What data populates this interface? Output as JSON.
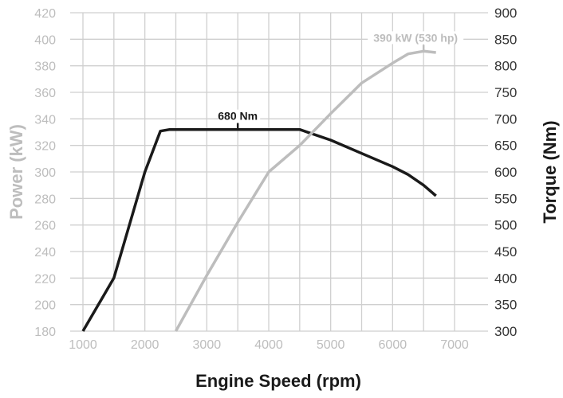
{
  "chart_data": {
    "type": "line",
    "xlabel": "Engine Speed (rpm)",
    "ylabel_left": "Power (kW)",
    "ylabel_right": "Torque (Nm)",
    "xlim": [
      1000,
      7000
    ],
    "ylim_left": [
      180,
      420
    ],
    "ylim_right": [
      300,
      900
    ],
    "x_ticks": [
      "1000",
      "2000",
      "3000",
      "4000",
      "5000",
      "6000",
      "7000"
    ],
    "y_ticks_left": [
      "180",
      "200",
      "220",
      "240",
      "260",
      "280",
      "300",
      "320",
      "340",
      "360",
      "380",
      "400",
      "420"
    ],
    "y_ticks_right": [
      "300",
      "350",
      "400",
      "450",
      "500",
      "550",
      "600",
      "650",
      "700",
      "750",
      "800",
      "850",
      "900"
    ],
    "grid": true,
    "colors": {
      "power": "#bdbdbd",
      "torque": "#1a1a1a"
    },
    "series": [
      {
        "axis": "right",
        "color": "#1a1a1a",
        "x": [
          1000,
          1500,
          2000,
          2250,
          2400,
          4500,
          5000,
          5500,
          6000,
          6250,
          6500,
          6700
        ],
        "y": [
          300,
          400,
          600,
          677,
          680,
          680,
          660,
          635,
          610,
          595,
          575,
          555
        ]
      },
      {
        "axis": "left",
        "color": "#bdbdbd",
        "x": [
          2500,
          3000,
          3500,
          4000,
          4500,
          5000,
          5500,
          6000,
          6250,
          6500,
          6700
        ],
        "y": [
          180,
          222,
          262,
          300,
          320,
          344,
          367,
          382,
          389,
          391,
          390
        ]
      }
    ],
    "annotations": [
      {
        "text": "680 Nm",
        "x": 3500,
        "y": 680,
        "axis": "right"
      },
      {
        "text": "390 kW (530 hp)",
        "x": 6500,
        "y": 391,
        "axis": "left"
      }
    ]
  }
}
